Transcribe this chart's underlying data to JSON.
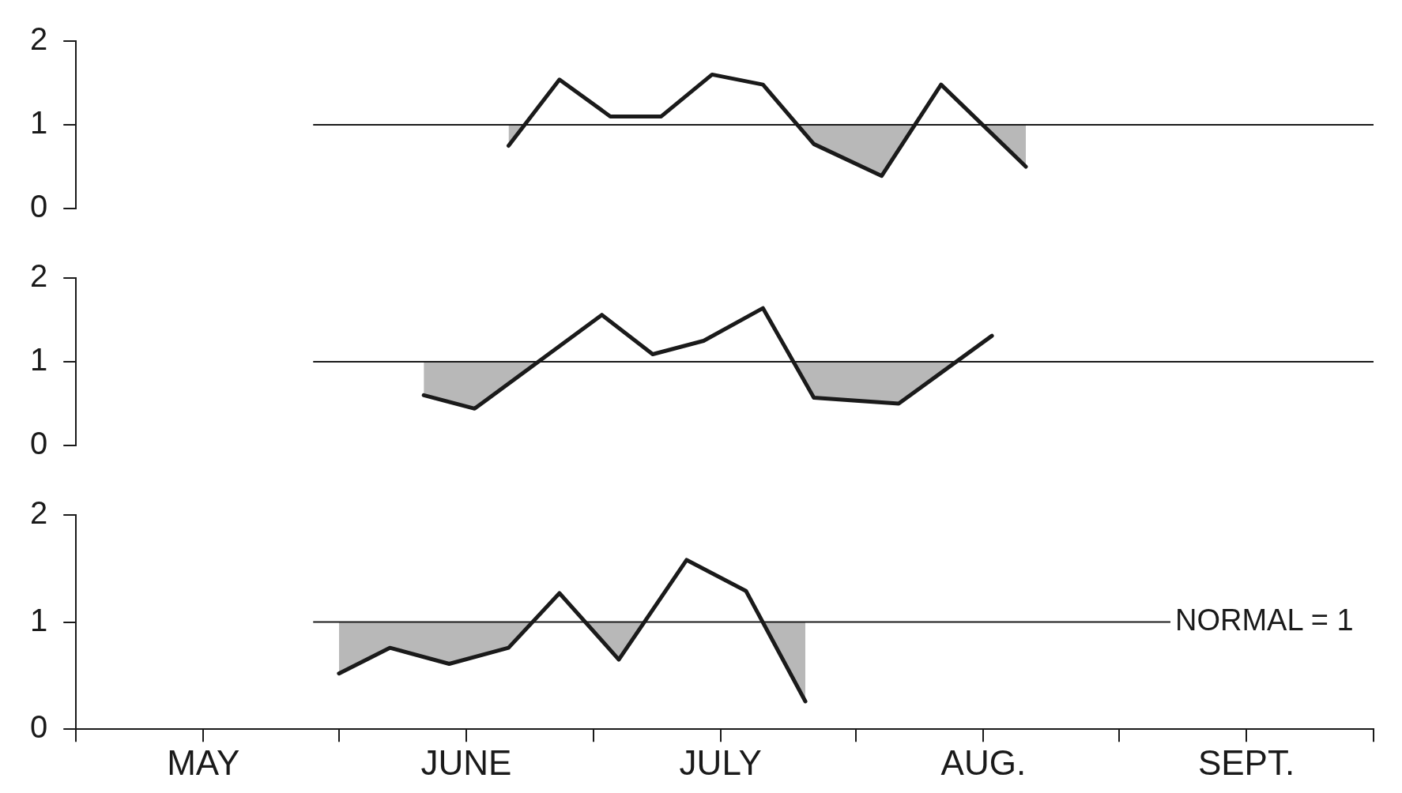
{
  "chart_data": [
    {
      "type": "line",
      "tick_labels": "y",
      "xlim": [
        "--05-01",
        "--10-01"
      ],
      "ylim": [
        0,
        2
      ],
      "yticks": [
        0,
        1,
        2
      ],
      "legend": false,
      "marker": "none",
      "line_style": "solid",
      "ref_lines": [
        {
          "axis": "y",
          "value": 1
        }
      ],
      "series": [
        {
          "color": "#1a1a1a",
          "x": [
            "--06-21",
            "--06-27",
            "--07-03",
            "--07-09",
            "--07-15",
            "--07-21",
            "--07-27",
            "--08-04",
            "--08-11",
            "--08-21"
          ],
          "values": [
            0.75,
            1.54,
            1.1,
            1.1,
            1.6,
            1.48,
            0.77,
            0.39,
            1.48,
            0.5
          ]
        }
      ]
    },
    {
      "type": "line",
      "tick_labels": "y",
      "xlim": [
        "--05-01",
        "--10-01"
      ],
      "ylim": [
        0,
        2
      ],
      "yticks": [
        0,
        1,
        2
      ],
      "legend": false,
      "marker": "none",
      "line_style": "solid",
      "ref_lines": [
        {
          "axis": "y",
          "value": 1
        }
      ],
      "series": [
        {
          "color": "#1a1a1a",
          "x": [
            "--06-11",
            "--06-17",
            "--07-02",
            "--07-08",
            "--07-14",
            "--07-21",
            "--07-27",
            "--08-06",
            "--08-17"
          ],
          "values": [
            0.6,
            0.44,
            1.56,
            1.09,
            1.25,
            1.64,
            0.57,
            0.5,
            1.31
          ]
        }
      ]
    },
    {
      "type": "line",
      "xlim": [
        "--05-01",
        "--10-01"
      ],
      "ylim": [
        0,
        2
      ],
      "yticks": [
        0,
        1,
        2
      ],
      "legend": false,
      "marker": "none",
      "line_style": "solid",
      "ref_lines": [
        {
          "axis": "y",
          "value": 1,
          "label": "NORMAL = 1"
        }
      ],
      "xticks": [
        {
          "value": "--05-01",
          "label": null
        },
        {
          "value": "--05-16",
          "label": "MAY"
        },
        {
          "value": "--06-01",
          "label": null
        },
        {
          "value": "--06-16",
          "label": "JUNE"
        },
        {
          "value": "--07-01",
          "label": null
        },
        {
          "value": "--07-16",
          "label": "JULY"
        },
        {
          "value": "--08-01",
          "label": null
        },
        {
          "value": "--08-16",
          "label": "AUG."
        },
        {
          "value": "--09-01",
          "label": null
        },
        {
          "value": "--09-16",
          "label": "SEPT."
        },
        {
          "value": "--10-01",
          "label": null
        }
      ],
      "series": [
        {
          "color": "#1a1a1a",
          "x": [
            "--06-01",
            "--06-07",
            "--06-14",
            "--06-21",
            "--06-27",
            "--07-04",
            "--07-12",
            "--07-19",
            "--07-26"
          ],
          "values": [
            0.52,
            0.76,
            0.61,
            0.76,
            1.27,
            0.65,
            1.58,
            1.29,
            0.26
          ]
        }
      ]
    }
  ]
}
